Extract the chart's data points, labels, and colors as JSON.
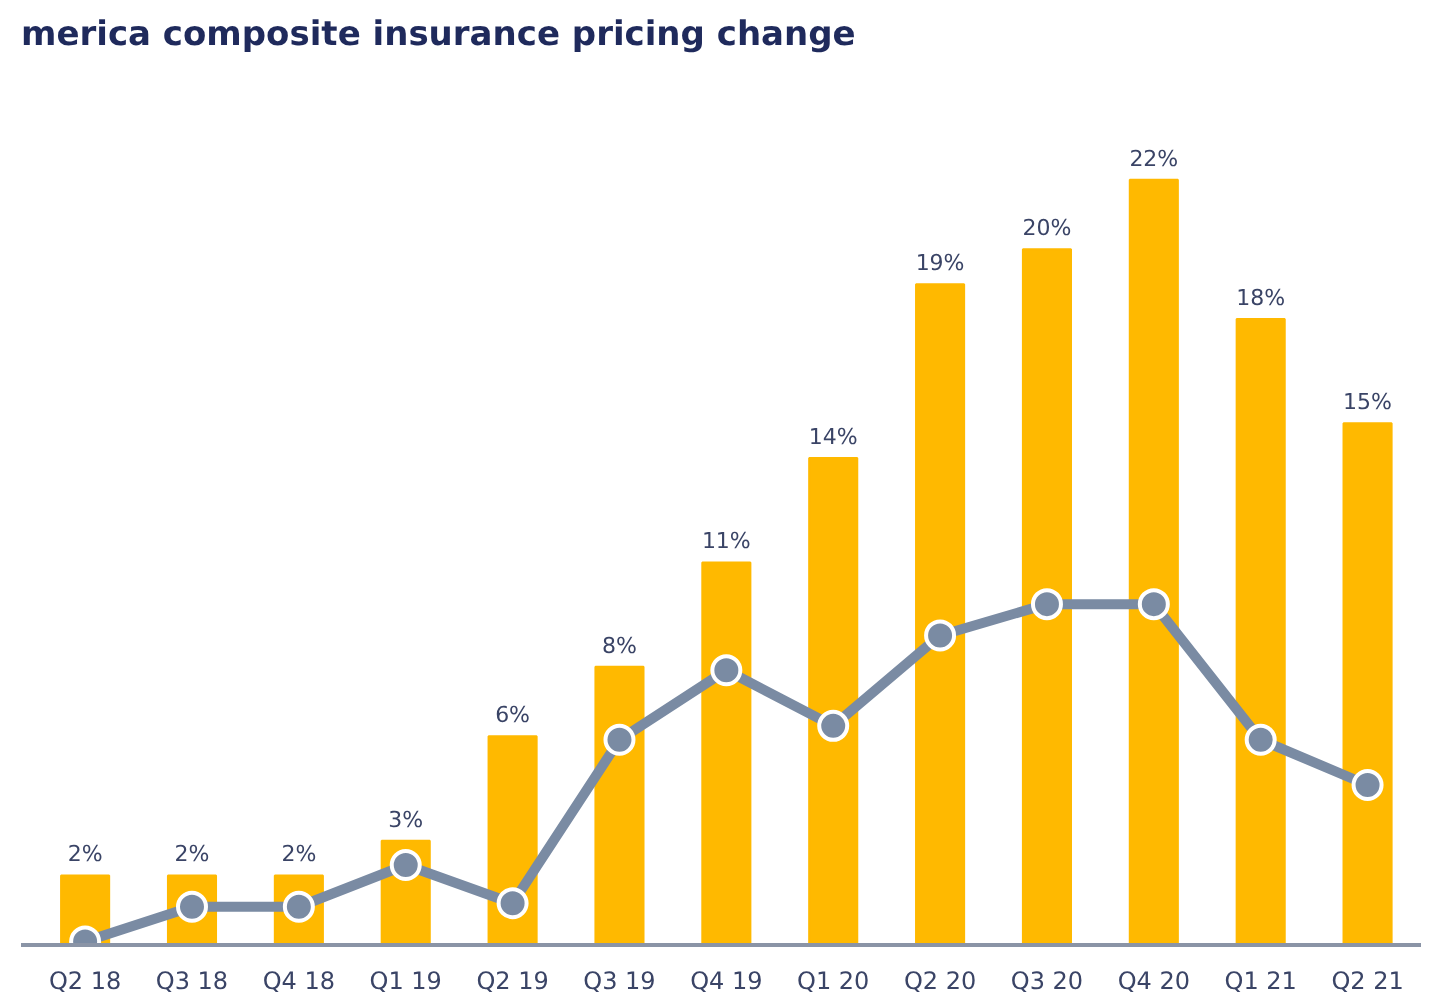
{
  "chart_data": {
    "type": "bar",
    "title": "merica composite insurance pricing change",
    "categories": [
      "Q2 18",
      "Q3 18",
      "Q4 18",
      "Q1 19",
      "Q2 19",
      "Q3 19",
      "Q4 19",
      "Q1 20",
      "Q2 20",
      "Q3 20",
      "Q4 20",
      "Q1 21",
      "Q2 21"
    ],
    "series": [
      {
        "color": "#ffb900",
        "values": [
          2,
          2,
          2,
          3,
          6,
          8,
          11,
          14,
          19,
          20,
          22,
          18,
          15
        ],
        "value_labels": [
          "2%",
          "2%",
          "2%",
          "3%",
          "6%",
          "8%",
          "11%",
          "14%",
          "19%",
          "20%",
          "22%",
          "18%",
          "15%"
        ]
      },
      {
        "type": "line",
        "color": "#7a8ba3",
        "values": [
          0.1,
          1.1,
          1.1,
          2.3,
          1.2,
          5.9,
          7.9,
          6.3,
          8.9,
          9.8,
          9.8,
          5.9,
          4.6
        ],
        "marker": "circle"
      }
    ],
    "grid": false
  }
}
